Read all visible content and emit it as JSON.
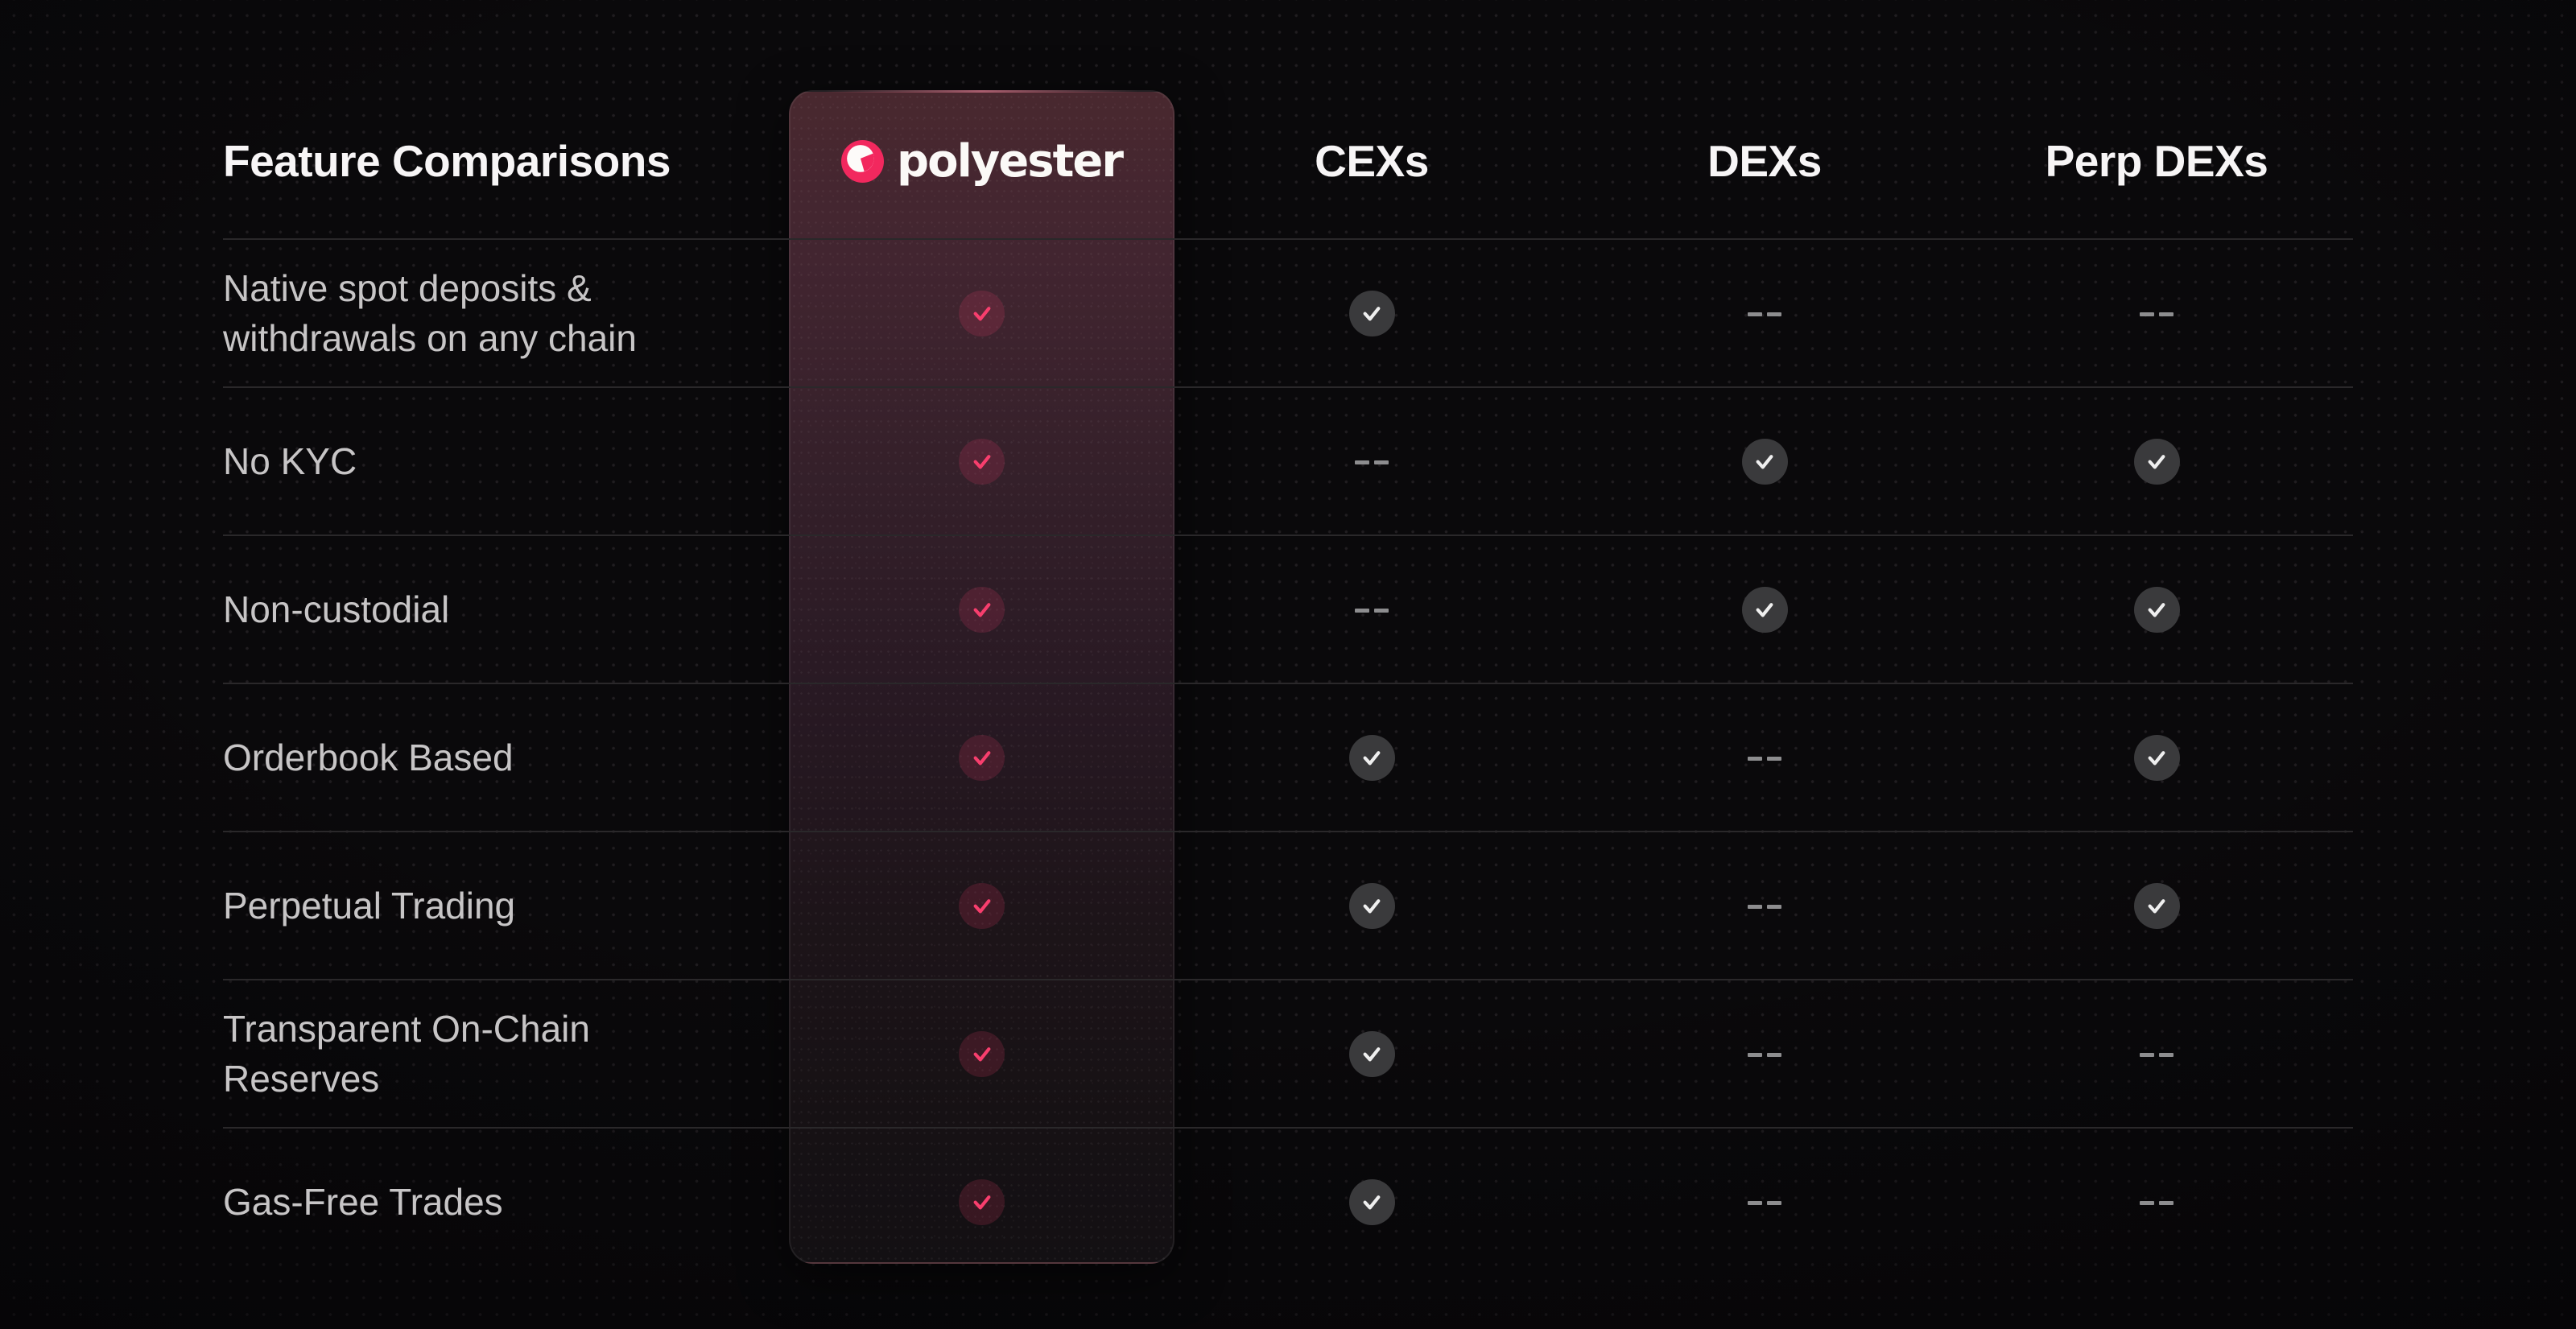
{
  "header": {
    "title": "Feature Comparisons",
    "brand": {
      "name": "polyester",
      "logo_icon": "polyester-logo"
    },
    "columns": [
      "CEXs",
      "DEXs",
      "Perp DEXs"
    ]
  },
  "legend": {
    "check": "included",
    "dash": "not included"
  },
  "colors": {
    "background": "#0a090b",
    "accent_pink": "#f83e6d",
    "brand_card_top": "#49282f",
    "gray_check_circle": "#3a3a3c",
    "check_white": "#efefef",
    "dash_gray": "#8d8d8f",
    "row_divider": "#2a282a",
    "row_label": "#c7c5c6",
    "header_text": "#f7f5f6"
  },
  "rows": [
    {
      "feature": "Native spot deposits & withdrawals on any chain",
      "values": {
        "polyester": "check",
        "cexs": "check",
        "dexs": "dash",
        "perp_dexs": "dash"
      }
    },
    {
      "feature": "No KYC",
      "values": {
        "polyester": "check",
        "cexs": "dash",
        "dexs": "check",
        "perp_dexs": "check"
      }
    },
    {
      "feature": "Non-custodial",
      "values": {
        "polyester": "check",
        "cexs": "dash",
        "dexs": "check",
        "perp_dexs": "check"
      }
    },
    {
      "feature": "Orderbook Based",
      "values": {
        "polyester": "check",
        "cexs": "check",
        "dexs": "dash",
        "perp_dexs": "check"
      }
    },
    {
      "feature": "Perpetual Trading",
      "values": {
        "polyester": "check",
        "cexs": "check",
        "dexs": "dash",
        "perp_dexs": "check"
      }
    },
    {
      "feature": "Transparent On-Chain Reserves",
      "values": {
        "polyester": "check",
        "cexs": "check",
        "dexs": "dash",
        "perp_dexs": "dash"
      }
    },
    {
      "feature": "Gas-Free Trades",
      "values": {
        "polyester": "check",
        "cexs": "check",
        "dexs": "dash",
        "perp_dexs": "dash"
      }
    }
  ]
}
